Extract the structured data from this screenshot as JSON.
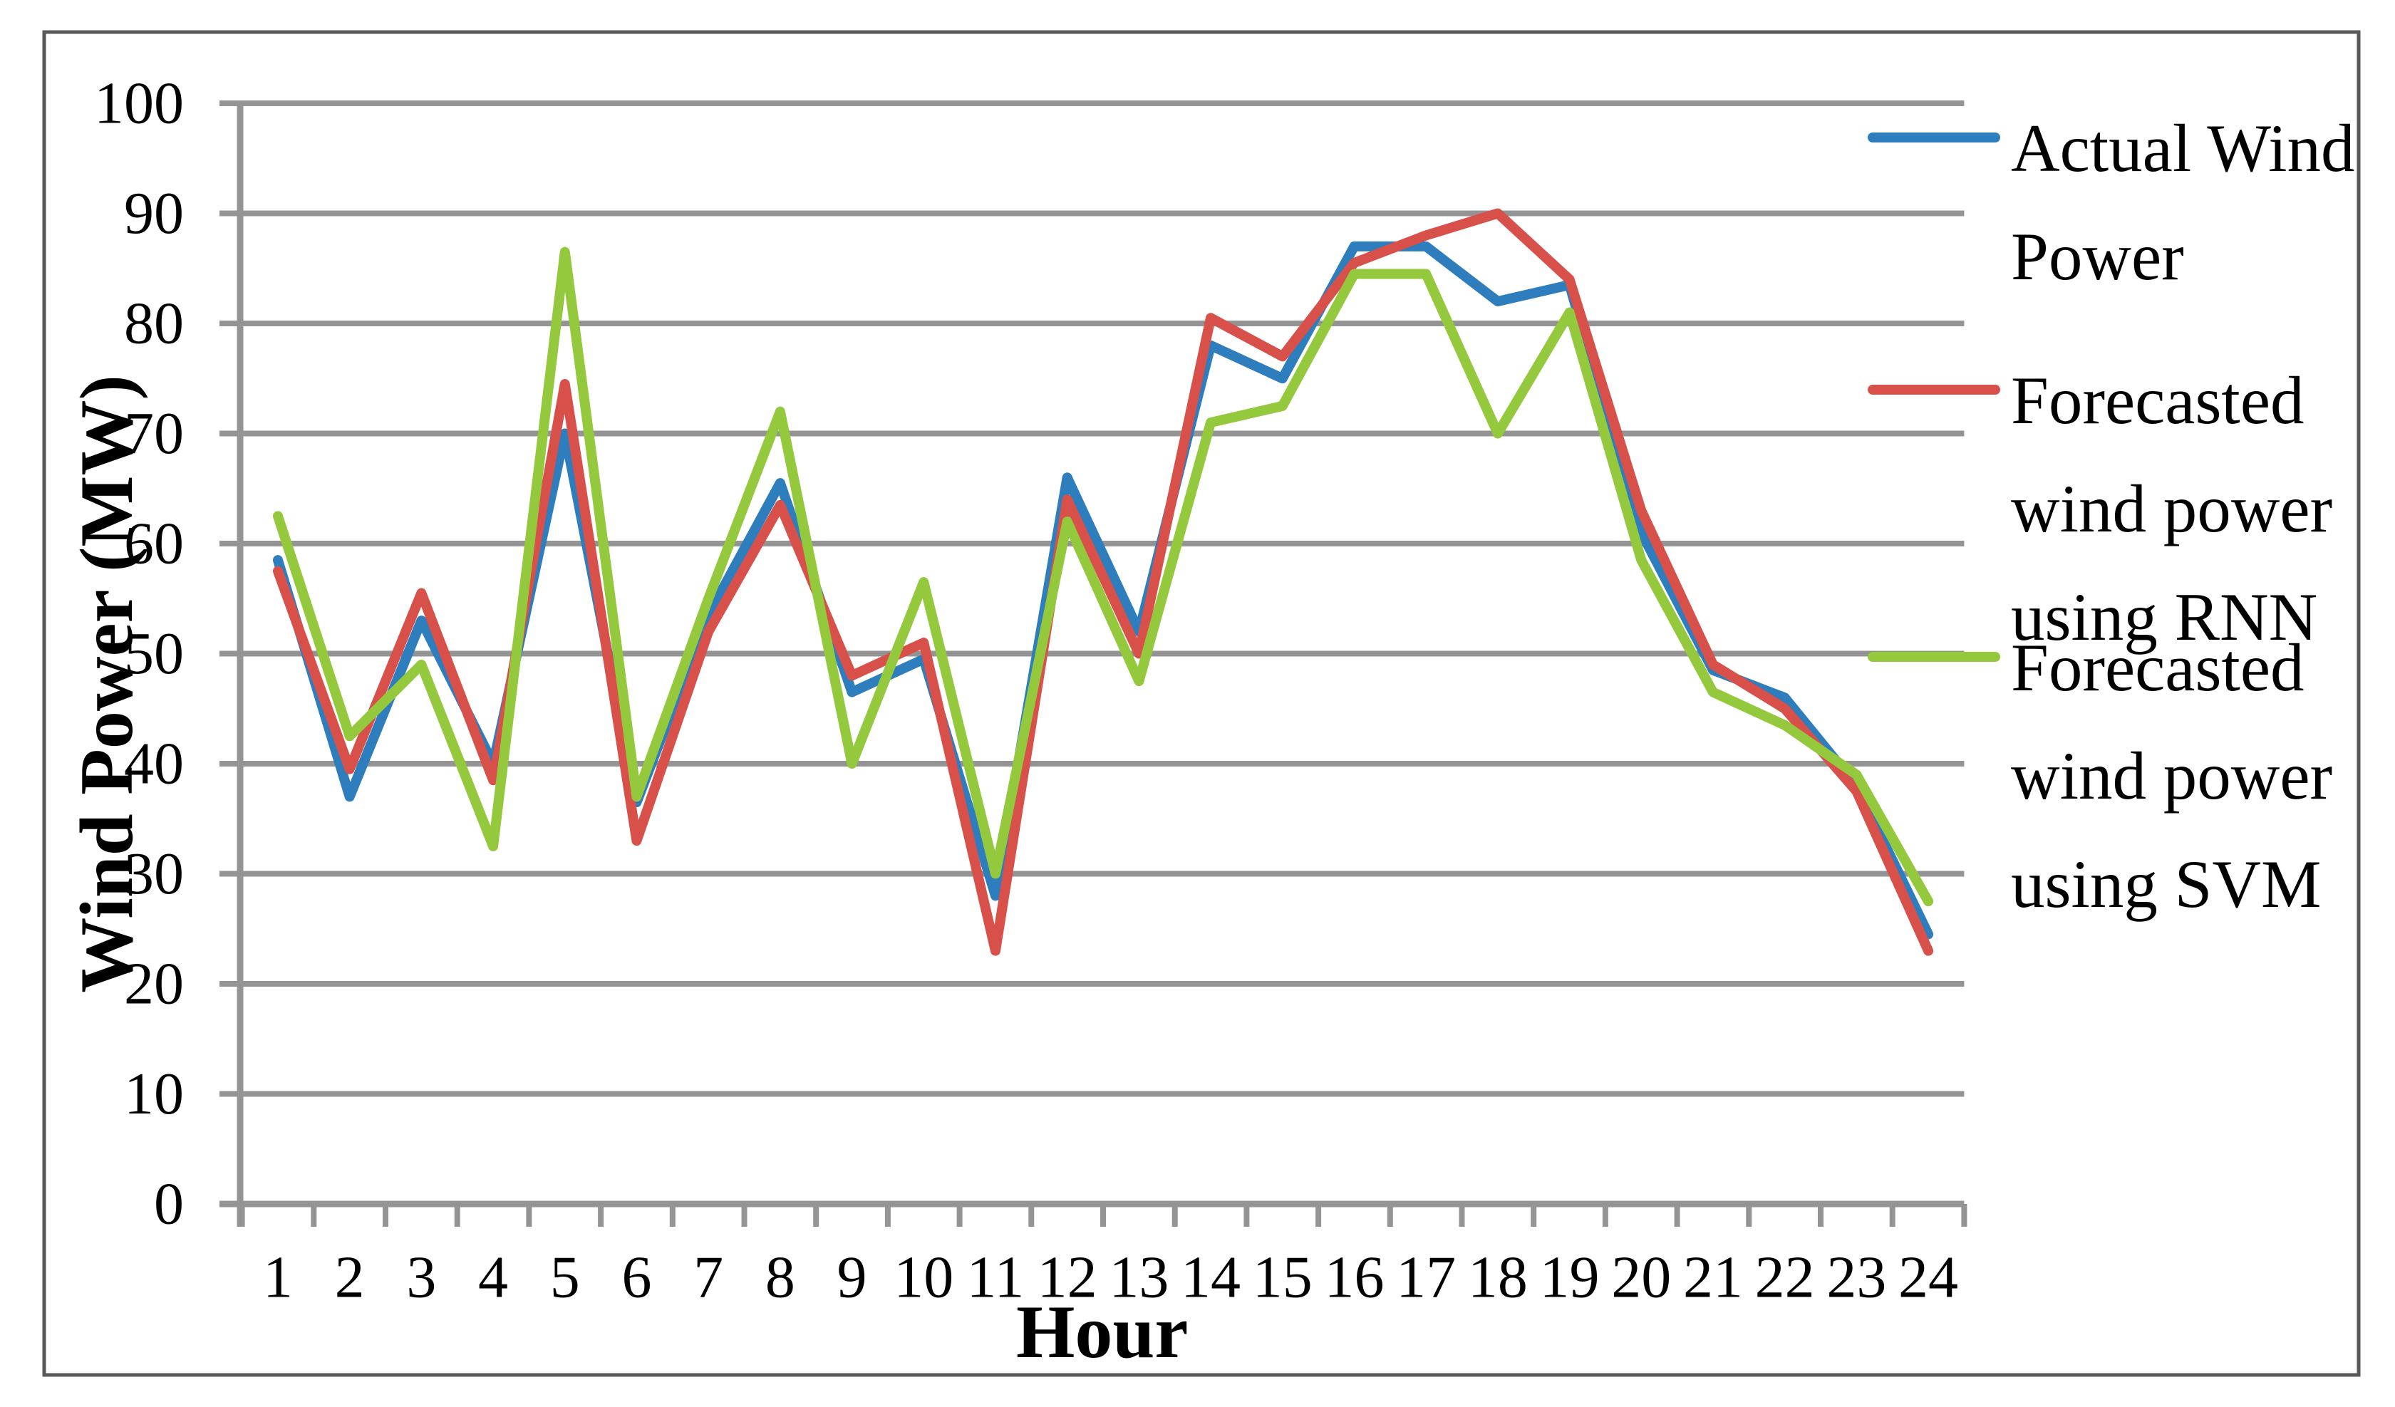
{
  "chart_data": {
    "type": "line",
    "title": "",
    "xlabel": "Hour",
    "ylabel": "Wind Power (MW)",
    "x": [
      1,
      2,
      3,
      4,
      5,
      6,
      7,
      8,
      9,
      10,
      11,
      12,
      13,
      14,
      15,
      16,
      17,
      18,
      19,
      20,
      21,
      22,
      23,
      24
    ],
    "ylim": [
      0,
      100
    ],
    "yticks": [
      0,
      10,
      20,
      30,
      40,
      50,
      60,
      70,
      80,
      90,
      100
    ],
    "grid": "horizontal-only",
    "legend_position": "right-outside",
    "series": [
      {
        "name": "Actual Wind Power",
        "color": "#2E7DBD",
        "values": [
          58.5,
          37,
          53,
          40,
          70,
          36.5,
          53.5,
          65.5,
          46.5,
          49.5,
          28,
          66,
          52,
          78,
          75,
          87,
          87,
          82,
          83.5,
          61,
          48.5,
          46,
          38,
          24.5
        ]
      },
      {
        "name": "Forecasted wind power using RNN",
        "color": "#D8504A",
        "values": [
          57.5,
          39.5,
          55.5,
          38.5,
          74.5,
          33,
          52,
          63.5,
          48,
          51,
          23,
          64,
          50,
          80.5,
          77,
          85.5,
          88,
          90,
          84,
          63,
          49,
          45,
          37.5,
          23
        ]
      },
      {
        "name": "Forecasted wind power using SVM",
        "color": "#94C83D",
        "values": [
          62.5,
          42.5,
          49,
          32.5,
          86.5,
          37,
          55,
          72,
          40,
          56.5,
          30,
          62,
          47.5,
          71,
          72.5,
          84.5,
          84.5,
          70,
          81,
          58.5,
          46.5,
          43.5,
          39,
          27.5
        ]
      }
    ]
  },
  "legend": {
    "entries": [
      {
        "series_index": 0,
        "lines": [
          "Actual Wind",
          "Power"
        ]
      },
      {
        "series_index": 1,
        "lines": [
          "Forecasted",
          "wind power",
          "using RNN"
        ]
      },
      {
        "series_index": 2,
        "lines": [
          "Forecasted",
          "wind power",
          "using SVM"
        ]
      }
    ]
  },
  "colors": {
    "background": "#FFFFFF",
    "gridline": "#949494",
    "axis": "#949494",
    "figure_border": "#595959",
    "text": "#000000"
  }
}
